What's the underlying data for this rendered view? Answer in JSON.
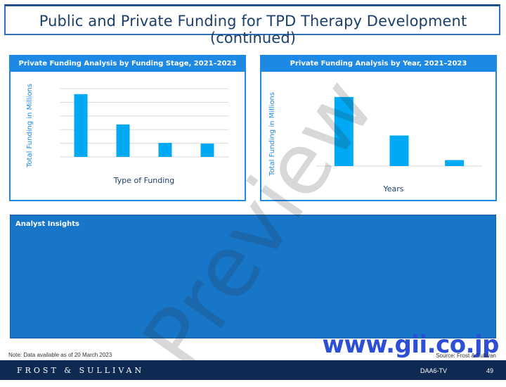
{
  "page": {
    "title": "Public and Private Funding for TPD Therapy Development (continued)"
  },
  "chart_data": [
    {
      "type": "bar",
      "title": "Private Funding Analysis by Funding Stage, 2021–2023",
      "xlabel": "Type of Funding",
      "ylabel": "Total Funding in Millions",
      "categories": [
        "",
        "",
        "",
        ""
      ],
      "values": [
        85,
        44,
        19,
        18
      ],
      "ylim": [
        0,
        100
      ],
      "grid": true,
      "color": "#00a9f4"
    },
    {
      "type": "bar",
      "title": "Private Funding Analysis by Year, 2021–2023",
      "xlabel": "Years",
      "ylabel": "Total Funding in Millions",
      "categories": [
        "",
        "",
        ""
      ],
      "values": [
        104,
        46,
        9
      ],
      "ylim": [
        0,
        125
      ],
      "grid": false,
      "color": "#00a9f4"
    }
  ],
  "insights": {
    "title": "Analyst Insights"
  },
  "watermark": {
    "text": "Preview"
  },
  "gii": {
    "text": "www.gii.co.jp"
  },
  "footer": {
    "note": "Note: Data available as of 20 March 2023",
    "source": "Source: Frost & Sullivan",
    "logo": "FROST & SULLIVAN",
    "code": "DAA6-TV",
    "page_number": "49"
  }
}
